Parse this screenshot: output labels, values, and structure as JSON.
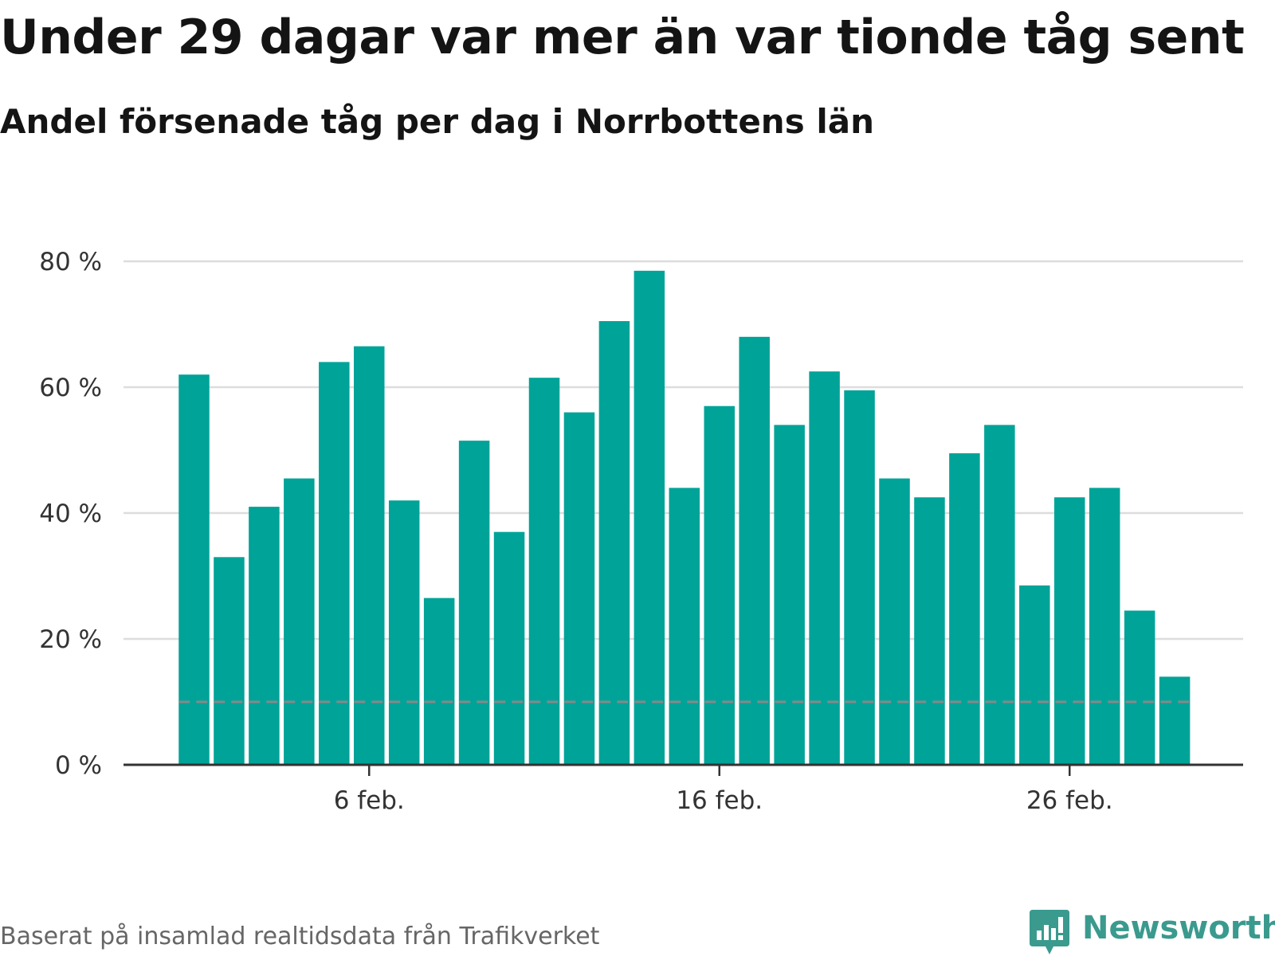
{
  "title": "Under 29 dagar var mer än var tionde tåg sent",
  "subtitle": "Andel försenade tåg per dag i Norrbottens län",
  "footer": "Baserat på insamlad realtidsdata från Trafikverket",
  "brand": {
    "name": "Newsworthy",
    "icon": "newsworthy-logo-icon",
    "color": "#3a9a8e"
  },
  "colors": {
    "bar": "#00a398",
    "grid": "#dddddd",
    "axis": "#333333",
    "reference_line": "#888888"
  },
  "chart_data": {
    "type": "bar",
    "x": [
      "2024-02-01",
      "2024-02-02",
      "2024-02-03",
      "2024-02-04",
      "2024-02-05",
      "2024-02-06",
      "2024-02-07",
      "2024-02-08",
      "2024-02-09",
      "2024-02-10",
      "2024-02-11",
      "2024-02-12",
      "2024-02-13",
      "2024-02-14",
      "2024-02-15",
      "2024-02-16",
      "2024-02-17",
      "2024-02-18",
      "2024-02-19",
      "2024-02-20",
      "2024-02-21",
      "2024-02-22",
      "2024-02-23",
      "2024-02-24",
      "2024-02-25",
      "2024-02-26",
      "2024-02-27",
      "2024-02-28",
      "2024-02-29"
    ],
    "values": [
      62,
      33,
      41,
      45.5,
      64,
      66.5,
      42,
      26.5,
      51.5,
      37,
      61.5,
      56,
      70.5,
      78.5,
      44,
      57,
      68,
      54,
      62.5,
      59.5,
      45.5,
      42.5,
      49.5,
      54,
      28.5,
      42.5,
      44,
      24.5,
      14
    ],
    "reference_line": 10,
    "ylim": [
      0,
      80
    ],
    "y_ticks": [
      0,
      20,
      40,
      60,
      80
    ],
    "y_tick_labels": [
      "0 %",
      "20 %",
      "40 %",
      "60 %",
      "80 %"
    ],
    "x_tick_labels": [
      {
        "x": "2024-02-06",
        "label": "6 feb."
      },
      {
        "x": "2024-02-16",
        "label": "16 feb."
      },
      {
        "x": "2024-02-26",
        "label": "26 feb."
      }
    ],
    "grid": true,
    "xlabel": "",
    "ylabel": ""
  }
}
